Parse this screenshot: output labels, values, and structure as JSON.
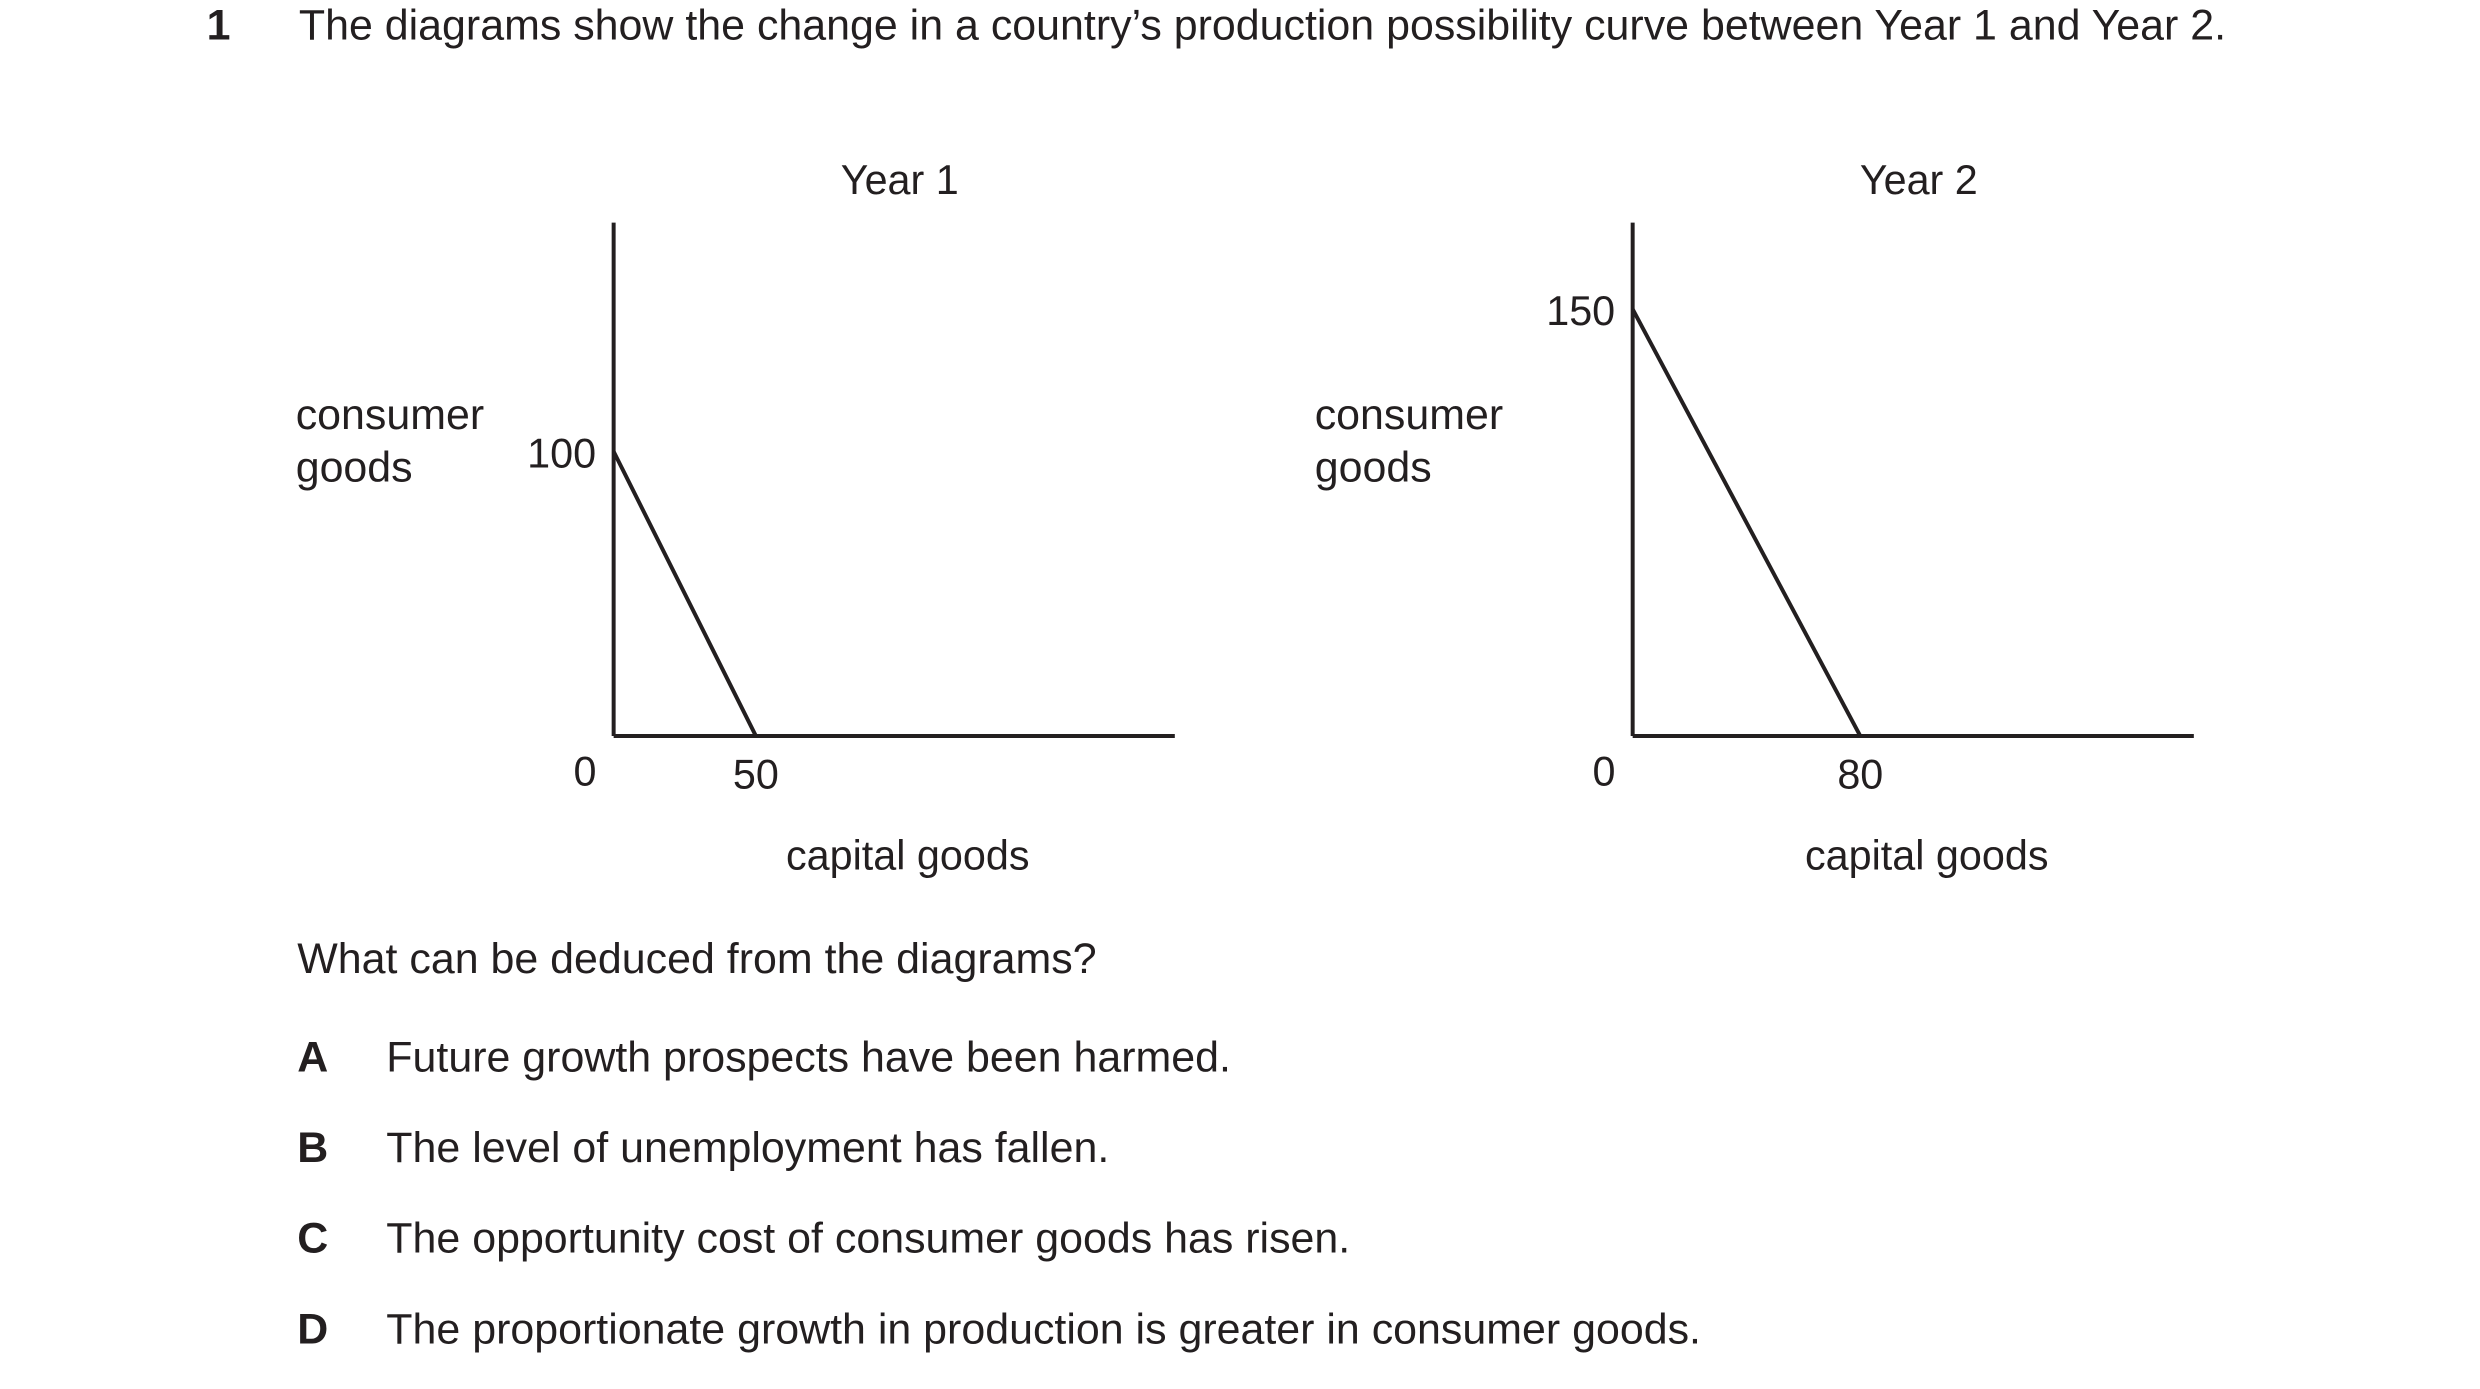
{
  "question": {
    "number": "1",
    "stem": "The diagrams show the change in a country’s production possibility curve between Year 1 and Year 2.",
    "prompt": "What can be deduced from the diagrams?",
    "options": [
      {
        "letter": "A",
        "text": "Future growth prospects have been harmed."
      },
      {
        "letter": "B",
        "text": "The level of unemployment has fallen."
      },
      {
        "letter": "C",
        "text": "The opportunity cost of consumer goods has risen."
      },
      {
        "letter": "D",
        "text": "The proportionate growth in production is greater in consumer goods."
      }
    ]
  },
  "diagrams": [
    {
      "title": "Year 1",
      "y_axis_label": "consumer goods",
      "x_axis_label": "capital goods",
      "origin_label": 0,
      "y_intercept": 100,
      "x_intercept": 50
    },
    {
      "title": "Year 2",
      "y_axis_label": "consumer goods",
      "x_axis_label": "capital goods",
      "origin_label": 0,
      "y_intercept": 150,
      "x_intercept": 80
    }
  ]
}
